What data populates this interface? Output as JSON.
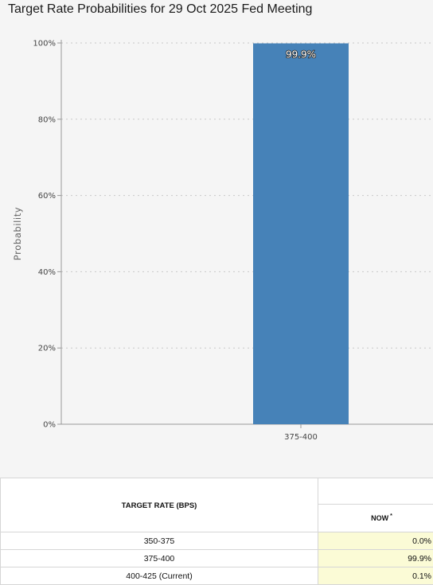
{
  "chart_data": {
    "type": "bar",
    "title": "Target Rate Probabilities for 29 Oct 2025 Fed Meeting",
    "xlabel": "",
    "ylabel": "Probability",
    "categories": [
      "375-400"
    ],
    "values": [
      99.9
    ],
    "value_labels": [
      "99.9%"
    ],
    "ylim": [
      0,
      100
    ],
    "yticks": [
      "0%",
      "20%",
      "40%",
      "60%",
      "80%",
      "100%"
    ],
    "grid": true,
    "colors": {
      "bar": "#4682b8",
      "grid": "#c8c8c8",
      "axis": "#999999"
    }
  },
  "table": {
    "header_left": "TARGET RATE (BPS)",
    "header_now": "NOW",
    "header_now_mark": "*",
    "rows": [
      {
        "rate": "350-375",
        "now": "0.0%"
      },
      {
        "rate": "375-400",
        "now": "99.9%"
      },
      {
        "rate": "400-425 (Current)",
        "now": "0.1%"
      }
    ],
    "highlight_color": "#fbfbd6"
  }
}
